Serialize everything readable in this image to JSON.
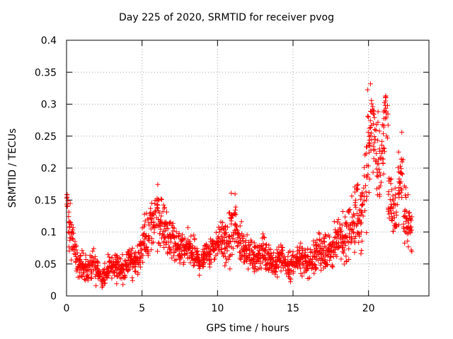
{
  "chart_data": {
    "type": "scatter",
    "title": "Day 225 of 2020, SRMTID for receiver pvog",
    "xlabel": "GPS time / hours",
    "ylabel": "SRMTID / TECUs",
    "xlim": [
      0,
      24
    ],
    "ylim": [
      0,
      0.4
    ],
    "xticks": [
      "0",
      "5",
      "10",
      "15",
      "20"
    ],
    "yticks": [
      "0",
      "0.05",
      "0.1",
      "0.15",
      "0.2",
      "0.25",
      "0.3",
      "0.35",
      "0.4"
    ],
    "grid": true,
    "marker": "+",
    "color": "#ff0000",
    "series": [
      {
        "name": "SRMTID",
        "x": [
          0.0,
          0.2,
          0.4,
          0.6,
          0.8,
          1.0,
          1.2,
          1.4,
          1.6,
          1.8,
          2.0,
          2.2,
          2.4,
          2.6,
          2.8,
          3.0,
          3.2,
          3.4,
          3.6,
          3.8,
          4.0,
          4.2,
          4.4,
          4.6,
          4.8,
          5.0,
          5.2,
          5.4,
          5.6,
          5.8,
          6.0,
          6.2,
          6.4,
          6.6,
          6.8,
          7.0,
          7.2,
          7.4,
          7.6,
          7.8,
          8.0,
          8.2,
          8.4,
          8.6,
          8.8,
          9.0,
          9.2,
          9.4,
          9.6,
          9.8,
          10.0,
          10.2,
          10.4,
          10.6,
          10.8,
          11.0,
          11.2,
          11.4,
          11.6,
          11.8,
          12.0,
          12.2,
          12.4,
          12.6,
          12.8,
          13.0,
          13.2,
          13.4,
          13.6,
          13.8,
          14.0,
          14.2,
          14.4,
          14.6,
          14.8,
          15.0,
          15.2,
          15.4,
          15.6,
          15.8,
          16.0,
          16.2,
          16.4,
          16.6,
          16.8,
          17.0,
          17.2,
          17.4,
          17.6,
          17.8,
          18.0,
          18.2,
          18.4,
          18.6,
          18.8,
          19.0,
          19.2,
          19.4,
          19.6,
          19.8,
          20.0,
          20.2,
          20.4,
          20.6,
          20.8,
          21.0,
          21.2,
          21.4,
          21.6,
          21.8,
          22.0,
          22.2,
          22.4,
          22.6,
          22.8
        ],
        "y": [
          0.15,
          0.1,
          0.09,
          0.06,
          0.05,
          0.05,
          0.045,
          0.04,
          0.045,
          0.05,
          0.04,
          0.035,
          0.03,
          0.035,
          0.04,
          0.045,
          0.05,
          0.045,
          0.04,
          0.045,
          0.05,
          0.055,
          0.05,
          0.055,
          0.06,
          0.08,
          0.09,
          0.1,
          0.11,
          0.12,
          0.13,
          0.12,
          0.11,
          0.1,
          0.09,
          0.085,
          0.08,
          0.075,
          0.07,
          0.07,
          0.075,
          0.07,
          0.065,
          0.06,
          0.055,
          0.06,
          0.065,
          0.07,
          0.075,
          0.08,
          0.085,
          0.09,
          0.085,
          0.08,
          0.09,
          0.1,
          0.11,
          0.09,
          0.08,
          0.075,
          0.07,
          0.065,
          0.06,
          0.06,
          0.065,
          0.07,
          0.065,
          0.06,
          0.055,
          0.05,
          0.055,
          0.06,
          0.055,
          0.05,
          0.045,
          0.05,
          0.055,
          0.06,
          0.06,
          0.055,
          0.05,
          0.055,
          0.06,
          0.065,
          0.07,
          0.075,
          0.07,
          0.07,
          0.075,
          0.08,
          0.085,
          0.09,
          0.09,
          0.1,
          0.11,
          0.12,
          0.13,
          0.12,
          0.14,
          0.18,
          0.24,
          0.28,
          0.27,
          0.22,
          0.2,
          0.25,
          0.3,
          0.16,
          0.12,
          0.13,
          0.17,
          0.2,
          0.13,
          0.11,
          0.1
        ],
        "spread": [
          0.02,
          0.04,
          0.03,
          0.025,
          0.02,
          0.02,
          0.02,
          0.02,
          0.02,
          0.02,
          0.02,
          0.015,
          0.015,
          0.015,
          0.02,
          0.02,
          0.02,
          0.02,
          0.02,
          0.02,
          0.02,
          0.02,
          0.02,
          0.02,
          0.025,
          0.03,
          0.03,
          0.04,
          0.04,
          0.04,
          0.05,
          0.04,
          0.04,
          0.04,
          0.03,
          0.03,
          0.03,
          0.025,
          0.025,
          0.025,
          0.025,
          0.025,
          0.025,
          0.02,
          0.02,
          0.02,
          0.02,
          0.025,
          0.025,
          0.025,
          0.025,
          0.03,
          0.03,
          0.03,
          0.04,
          0.05,
          0.04,
          0.03,
          0.03,
          0.025,
          0.025,
          0.02,
          0.02,
          0.02,
          0.02,
          0.025,
          0.025,
          0.02,
          0.02,
          0.02,
          0.02,
          0.02,
          0.02,
          0.02,
          0.02,
          0.02,
          0.02,
          0.025,
          0.025,
          0.02,
          0.02,
          0.02,
          0.025,
          0.025,
          0.03,
          0.03,
          0.03,
          0.03,
          0.03,
          0.03,
          0.03,
          0.035,
          0.035,
          0.04,
          0.04,
          0.05,
          0.05,
          0.05,
          0.06,
          0.07,
          0.07,
          0.06,
          0.06,
          0.06,
          0.06,
          0.06,
          0.05,
          0.05,
          0.05,
          0.05,
          0.05,
          0.05,
          0.05,
          0.04,
          0.04
        ]
      }
    ]
  }
}
